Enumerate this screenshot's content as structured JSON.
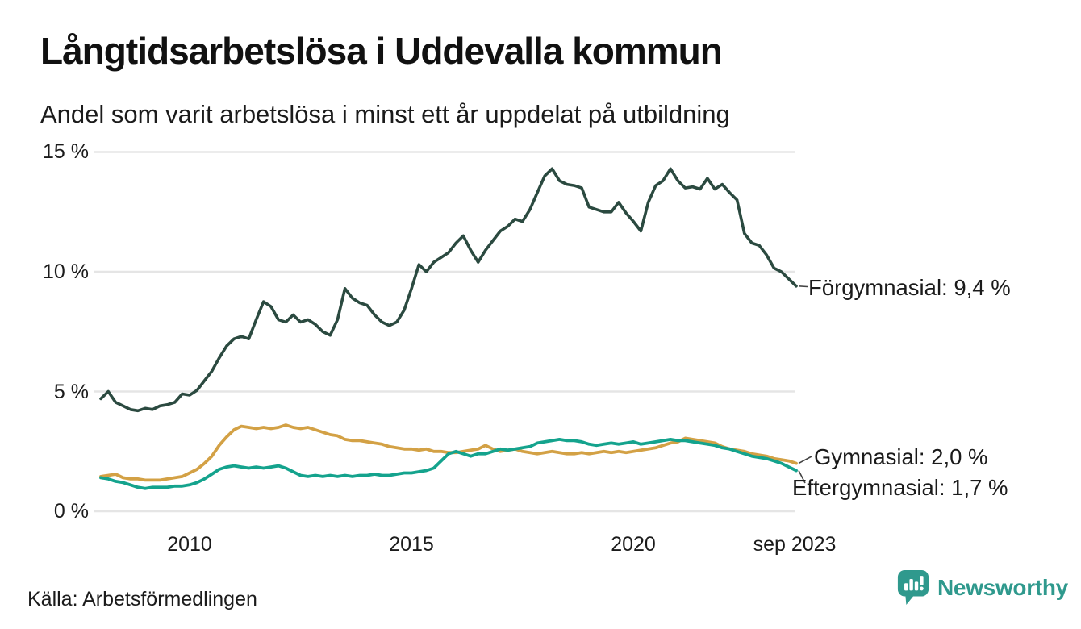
{
  "header": {
    "title": "Långtidsarbetslösa i Uddevalla kommun",
    "subtitle": "Andel som varit arbetslösa i minst ett år uppdelat på utbildning"
  },
  "footer": {
    "source": "Källa: Arbetsförmedlingen",
    "brand": "Newsworthy"
  },
  "colors": {
    "forgymnasial": "#2b4a40",
    "gymnasial": "#d3a145",
    "eftergymnasial": "#14a38d",
    "grid": "#e5e5e5",
    "brand": "#2f998d",
    "text": "#1b1b1b"
  },
  "chart_data": {
    "type": "line",
    "title": "Långtidsarbetslösa i Uddevalla kommun",
    "subtitle": "Andel som varit arbetslösa i minst ett år uppdelat på utbildning",
    "xlabel": "",
    "ylabel": "",
    "unit": "%",
    "grid": "horizontal",
    "legend_position": "end-of-line-labels",
    "xlim": [
      2008.0,
      2023.667
    ],
    "ylim": [
      0,
      15
    ],
    "x_start": 2008.0,
    "x_step_years": 0.166667,
    "x_end_label": "sep 2023",
    "yticks": [
      {
        "value": 15,
        "label": "15 %"
      },
      {
        "value": 10,
        "label": "10 %"
      },
      {
        "value": 5,
        "label": "5 %"
      },
      {
        "value": 0,
        "label": "0 %"
      }
    ],
    "xticks": [
      {
        "value": 2010,
        "label": "2010"
      },
      {
        "value": 2015,
        "label": "2015"
      },
      {
        "value": 2020,
        "label": "2020"
      },
      {
        "value": 2023.667,
        "label": "sep 2023"
      }
    ],
    "series": [
      {
        "name": "Förgymnasial",
        "color": "#2b4a40",
        "end_value": 9.4,
        "end_label": "Förgymnasial: 9,4 %",
        "values": [
          4.7,
          5.0,
          4.55,
          4.4,
          4.25,
          4.2,
          4.3,
          4.25,
          4.4,
          4.45,
          4.55,
          4.9,
          4.85,
          5.05,
          5.45,
          5.85,
          6.4,
          6.9,
          7.2,
          7.3,
          7.2,
          8.0,
          8.75,
          8.55,
          8.0,
          7.9,
          8.2,
          7.9,
          8.0,
          7.8,
          7.5,
          7.35,
          8.0,
          9.3,
          8.9,
          8.7,
          8.6,
          8.2,
          7.9,
          7.75,
          7.9,
          8.4,
          9.3,
          10.3,
          10.0,
          10.4,
          10.6,
          10.8,
          11.2,
          11.5,
          10.9,
          10.4,
          10.9,
          11.3,
          11.7,
          11.9,
          12.2,
          12.1,
          12.6,
          13.3,
          14.0,
          14.3,
          13.8,
          13.65,
          13.6,
          13.5,
          12.7,
          12.6,
          12.5,
          12.5,
          12.9,
          12.45,
          12.1,
          11.7,
          12.9,
          13.6,
          13.8,
          14.3,
          13.8,
          13.5,
          13.55,
          13.45,
          13.9,
          13.45,
          13.65,
          13.3,
          13.0,
          11.6,
          11.2,
          11.1,
          10.7,
          10.15,
          10.0,
          9.7,
          9.4
        ]
      },
      {
        "name": "Gymnasial",
        "color": "#d3a145",
        "end_value": 2.0,
        "end_label": "Gymnasial: 2,0 %",
        "values": [
          1.45,
          1.5,
          1.55,
          1.4,
          1.35,
          1.35,
          1.3,
          1.3,
          1.3,
          1.35,
          1.4,
          1.45,
          1.6,
          1.75,
          2.0,
          2.3,
          2.75,
          3.1,
          3.4,
          3.55,
          3.5,
          3.45,
          3.5,
          3.45,
          3.5,
          3.6,
          3.5,
          3.45,
          3.5,
          3.4,
          3.3,
          3.2,
          3.15,
          3.0,
          2.95,
          2.95,
          2.9,
          2.85,
          2.8,
          2.7,
          2.65,
          2.6,
          2.6,
          2.55,
          2.6,
          2.5,
          2.5,
          2.45,
          2.45,
          2.5,
          2.55,
          2.6,
          2.75,
          2.6,
          2.5,
          2.55,
          2.6,
          2.5,
          2.45,
          2.4,
          2.45,
          2.5,
          2.45,
          2.4,
          2.4,
          2.45,
          2.4,
          2.45,
          2.5,
          2.45,
          2.5,
          2.45,
          2.5,
          2.55,
          2.6,
          2.65,
          2.75,
          2.85,
          2.9,
          3.05,
          3.0,
          2.95,
          2.9,
          2.85,
          2.7,
          2.6,
          2.55,
          2.5,
          2.4,
          2.35,
          2.3,
          2.2,
          2.15,
          2.1,
          2.0
        ]
      },
      {
        "name": "Eftergymnasial",
        "color": "#14a38d",
        "end_value": 1.7,
        "end_label": "Eftergymnasial: 1,7 %",
        "values": [
          1.4,
          1.35,
          1.25,
          1.2,
          1.1,
          1.0,
          0.95,
          1.0,
          1.0,
          1.0,
          1.05,
          1.05,
          1.1,
          1.2,
          1.35,
          1.55,
          1.75,
          1.85,
          1.9,
          1.85,
          1.8,
          1.85,
          1.8,
          1.85,
          1.9,
          1.8,
          1.65,
          1.5,
          1.45,
          1.5,
          1.45,
          1.5,
          1.45,
          1.5,
          1.45,
          1.5,
          1.5,
          1.55,
          1.5,
          1.5,
          1.55,
          1.6,
          1.6,
          1.65,
          1.7,
          1.8,
          2.1,
          2.4,
          2.5,
          2.4,
          2.3,
          2.4,
          2.4,
          2.5,
          2.6,
          2.55,
          2.6,
          2.65,
          2.7,
          2.85,
          2.9,
          2.95,
          3.0,
          2.95,
          2.95,
          2.9,
          2.8,
          2.75,
          2.8,
          2.85,
          2.8,
          2.85,
          2.9,
          2.8,
          2.85,
          2.9,
          2.95,
          3.0,
          2.95,
          2.95,
          2.9,
          2.85,
          2.8,
          2.75,
          2.65,
          2.6,
          2.5,
          2.4,
          2.3,
          2.25,
          2.2,
          2.1,
          2.0,
          1.85,
          1.7
        ]
      }
    ]
  }
}
